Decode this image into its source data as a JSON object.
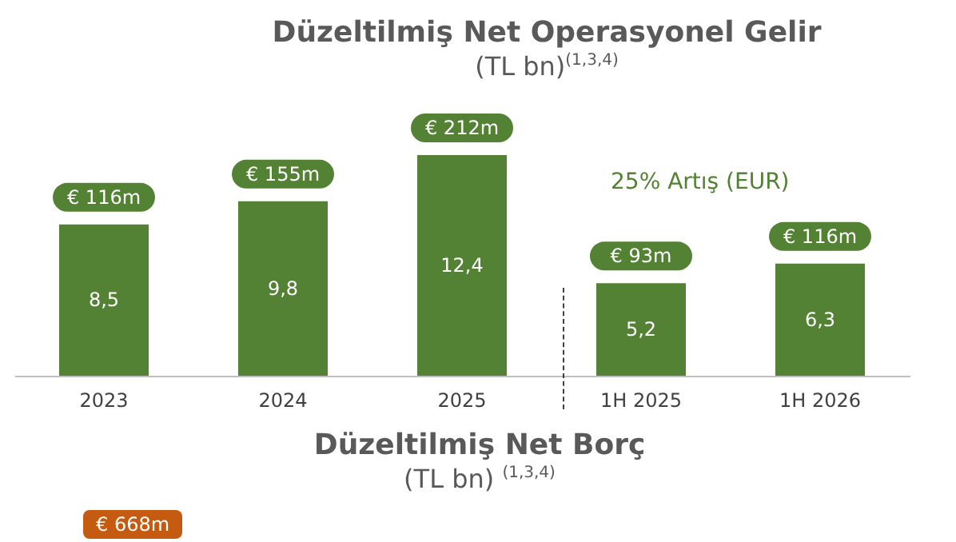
{
  "chart_data": [
    {
      "type": "bar",
      "title": "Düzeltilmiş Net Operasyonel Gelir",
      "subtitle": "(TL bn)$^{(1,3,4)}$",
      "categories": [
        "2023",
        "2024",
        "2025",
        "1H 2025",
        "1H 2026"
      ],
      "values": [
        8.5,
        9.8,
        12.4,
        5.2,
        6.3
      ],
      "color": "#548235",
      "value_labels": [
        "8,5",
        "9,8",
        "12,4",
        "5,2",
        "6,3"
      ],
      "annotations": [
        {
          "text": "€ 116m",
          "x": "2023",
          "y": 8.5
        },
        {
          "text": "€ 155m",
          "x": "2024",
          "y": 9.8
        },
        {
          "text": "€ 212m",
          "x": "2025",
          "y": 12.4
        },
        {
          "text": "€ 93m",
          "x": "1H 2025",
          "y": 5.2
        },
        {
          "text": "€ 116m",
          "x": "1H 2026",
          "y": 6.3
        },
        "25% Artış (EUR)"
      ]
    },
    {
      "type": "other",
      "title": "Düzeltilmiş Net Borç",
      "subtitle": "(TL bn) $^{(1,3,4)}$",
      "annotations": [
        "€ 668m"
      ]
    }
  ]
}
